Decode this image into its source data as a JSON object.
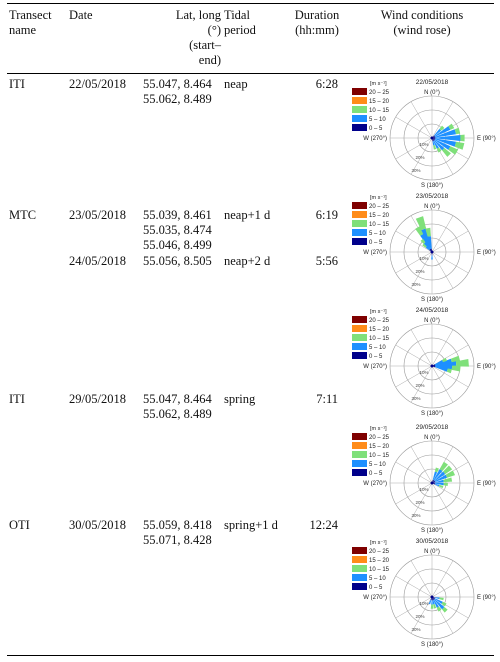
{
  "header": {
    "transect": "Transect\nname",
    "date": "Date",
    "latlong": "Lat, long\n(°)\n(start–\nend)",
    "tidal": "Tidal\nperiod",
    "duration": "Duration\n(hh:mm)",
    "wind": "Wind conditions\n(wind rose)"
  },
  "rows": [
    {
      "transect": "ITI",
      "date": "22/05/2018",
      "coord1": "55.047, 8.464",
      "coord2": "55.062, 8.489",
      "tidal": "neap",
      "duration": "6:28"
    },
    {
      "transect": "MTC",
      "date": "23/05/2018",
      "coord1": "55.039, 8.461",
      "coord2": "55.035, 8.474",
      "coord3": "55.046, 8.499",
      "tidal": "neap+1 d",
      "duration": "6:19"
    },
    {
      "date": "24/05/2018",
      "coord1": "55.056, 8.505",
      "tidal": "neap+2 d",
      "duration": "5:56"
    },
    {
      "transect": "ITI",
      "date": "29/05/2018",
      "coord1": "55.047, 8.464",
      "coord2": "55.062, 8.489",
      "tidal": "spring",
      "duration": "7:11"
    },
    {
      "transect": "OTI",
      "date": "30/05/2018",
      "coord1": "55.059, 8.418",
      "coord2": "55.071, 8.428",
      "tidal": "spring+1 d",
      "duration": "12:24"
    }
  ],
  "rose_common": {
    "unit": "[m s⁻¹]",
    "legend": [
      "20 – 25",
      "15 – 20",
      "10 – 15",
      "5 – 10",
      "0 – 5"
    ],
    "legend_colors": [
      "#7f0000",
      "#ff8c1a",
      "#7fe07a",
      "#1e90ff",
      "#00008b"
    ],
    "n": "N (0°)",
    "e": "E (90°)",
    "s": "S (180°)",
    "w": "W (270°)",
    "r1": "10%",
    "r2": "20%",
    "r3": "30%"
  },
  "roses": [
    {
      "title": "22/05/2018",
      "dominant_direction": "E to SE",
      "bins": [
        [
          60,
          4,
          1
        ],
        [
          75,
          5,
          1
        ],
        [
          90,
          6,
          1
        ],
        [
          105,
          5,
          2
        ],
        [
          120,
          4,
          2
        ],
        [
          135,
          3,
          2
        ],
        [
          150,
          2,
          1
        ],
        [
          165,
          1,
          1
        ],
        [
          45,
          2,
          1
        ]
      ]
    },
    {
      "title": "23/05/2018",
      "dominant_direction": "NNW",
      "bins": [
        [
          330,
          4,
          2
        ],
        [
          340,
          5,
          3
        ],
        [
          350,
          3,
          2
        ],
        [
          320,
          2,
          1
        ],
        [
          310,
          1,
          1
        ],
        [
          180,
          1,
          0
        ]
      ]
    },
    {
      "title": "24/05/2018",
      "dominant_direction": "E",
      "bins": [
        [
          75,
          4,
          2
        ],
        [
          85,
          5,
          3
        ],
        [
          95,
          4,
          2
        ],
        [
          105,
          3,
          1
        ],
        [
          65,
          2,
          1
        ]
      ]
    },
    {
      "title": "29/05/2018",
      "dominant_direction": "NE to E",
      "bins": [
        [
          35,
          3,
          2
        ],
        [
          50,
          3,
          2
        ],
        [
          65,
          3,
          2
        ],
        [
          80,
          2,
          2
        ],
        [
          95,
          2,
          1
        ],
        [
          20,
          2,
          1
        ],
        [
          110,
          1,
          1
        ]
      ]
    },
    {
      "title": "30/05/2018",
      "dominant_direction": "SE",
      "bins": [
        [
          100,
          1,
          1
        ],
        [
          120,
          2,
          1
        ],
        [
          135,
          3,
          1
        ],
        [
          150,
          2,
          1
        ],
        [
          165,
          1,
          1
        ],
        [
          180,
          1,
          1
        ],
        [
          200,
          1,
          0
        ]
      ]
    }
  ]
}
